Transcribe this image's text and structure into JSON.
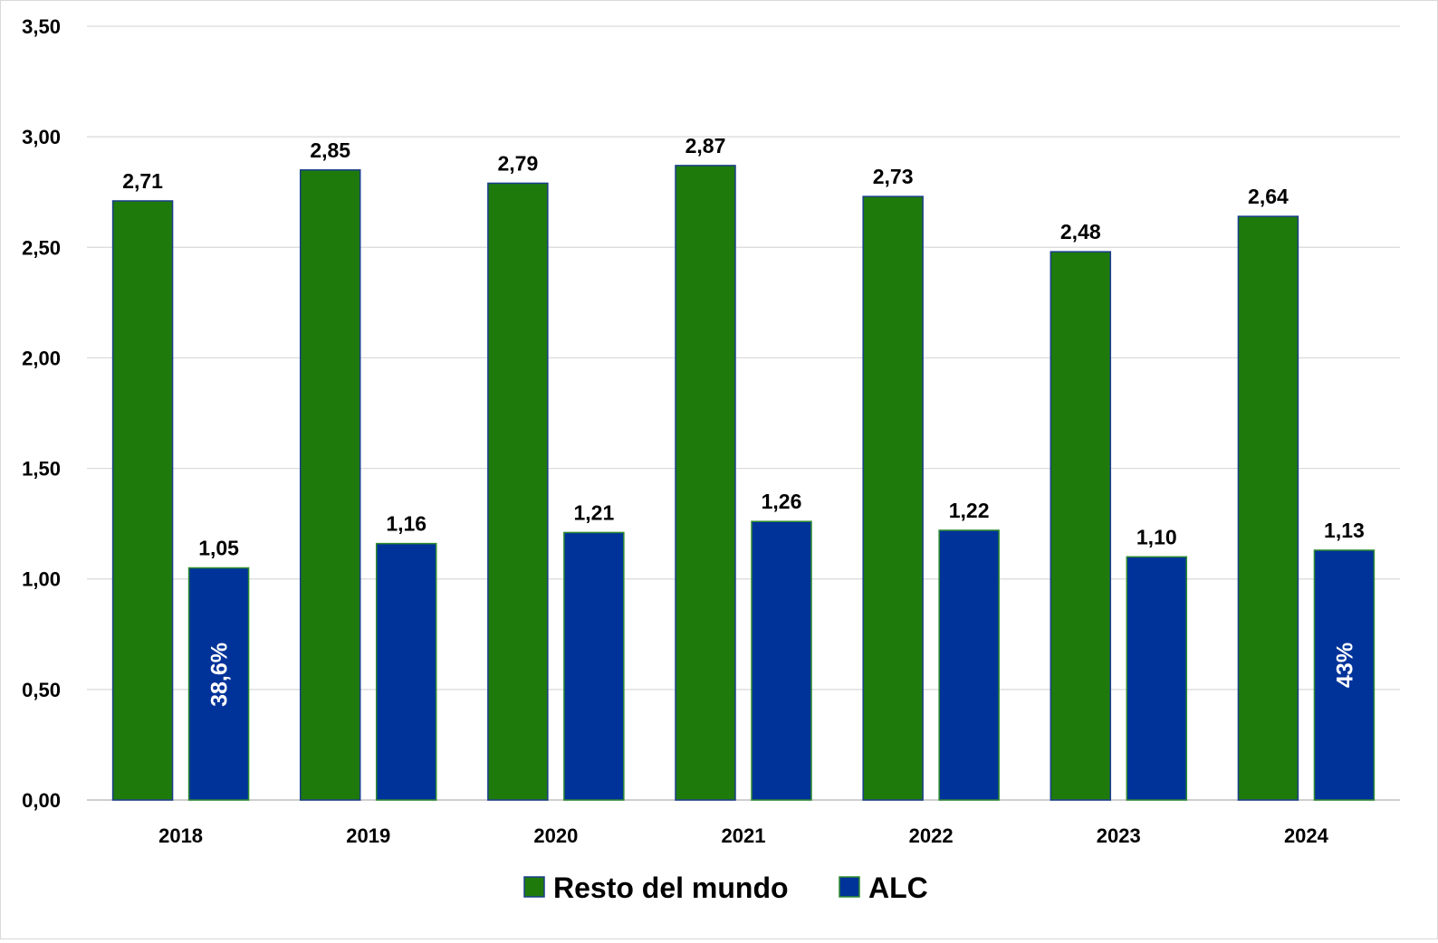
{
  "colors": {
    "series_resto": "#1F7A0C",
    "series_alc": "#003399",
    "bar_outline_resto": "#1A3E8C",
    "bar_outline_alc": "#2E8B2E",
    "gridline": "#d9d9d9",
    "baseline": "#bfbfbf"
  },
  "chart_data": {
    "type": "bar",
    "categories": [
      "2018",
      "2019",
      "2020",
      "2021",
      "2022",
      "2023",
      "2024"
    ],
    "series": [
      {
        "name": "Resto del mundo",
        "values": [
          2.71,
          2.85,
          2.79,
          2.87,
          2.73,
          2.48,
          2.64
        ],
        "labels": [
          "2,71",
          "2,85",
          "2,79",
          "2,87",
          "2,73",
          "2,48",
          "2,64"
        ]
      },
      {
        "name": "ALC",
        "values": [
          1.05,
          1.16,
          1.21,
          1.26,
          1.22,
          1.1,
          1.13
        ],
        "labels": [
          "1,05",
          "1,16",
          "1,21",
          "1,26",
          "1,22",
          "1,10",
          "1,13"
        ]
      }
    ],
    "inside_annotations": [
      {
        "category": "2018",
        "series": "ALC",
        "text": "38,6%"
      },
      {
        "category": "2024",
        "series": "ALC",
        "text": "43%"
      }
    ],
    "ylim": [
      0,
      3.5
    ],
    "y_ticks": [
      0,
      0.5,
      1,
      1.5,
      2,
      2.5,
      3,
      3.5
    ],
    "y_tick_labels": [
      "0,00",
      "0,50",
      "1,00",
      "1,50",
      "2,00",
      "2,50",
      "3,00",
      "3,50"
    ],
    "title": "",
    "xlabel": "",
    "ylabel": "",
    "grid": true,
    "legend_position": "bottom-center"
  }
}
